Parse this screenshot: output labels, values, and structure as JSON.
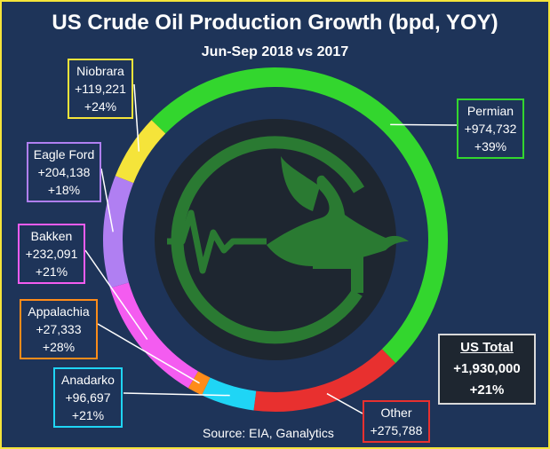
{
  "title": "US Crude Oil Production Growth (bpd, YOY)",
  "subtitle": "Jun-Sep 2018 vs 2017",
  "source": "Source: EIA, Ganalytics",
  "total": {
    "label": "US Total",
    "value": "+1,930,000",
    "pct": "+21%"
  },
  "chart_data": {
    "type": "pie",
    "title": "US Crude Oil Production Growth (bpd, YOY)",
    "subtitle": "Jun-Sep 2018 vs 2017",
    "slices": [
      {
        "name": "Permian",
        "value": 974732,
        "value_label": "+974,732",
        "pct": "+39%",
        "color": "#33d62e"
      },
      {
        "name": "Other",
        "value": 275788,
        "value_label": "+275,788",
        "pct": "",
        "color": "#e8302f"
      },
      {
        "name": "Anadarko",
        "value": 96697,
        "value_label": "+96,697",
        "pct": "+21%",
        "color": "#1fd5f5"
      },
      {
        "name": "Appalachia",
        "value": 27333,
        "value_label": "+27,333",
        "pct": "+28%",
        "color": "#ff8c1a"
      },
      {
        "name": "Bakken",
        "value": 232091,
        "value_label": "+232,091",
        "pct": "+21%",
        "color": "#f45cf0"
      },
      {
        "name": "Eagle Ford",
        "value": 204138,
        "value_label": "+204,138",
        "pct": "+18%",
        "color": "#b07ff2"
      },
      {
        "name": "Niobrara",
        "value": 119221,
        "value_label": "+119,221",
        "pct": "+24%",
        "color": "#f5e43a"
      }
    ]
  }
}
